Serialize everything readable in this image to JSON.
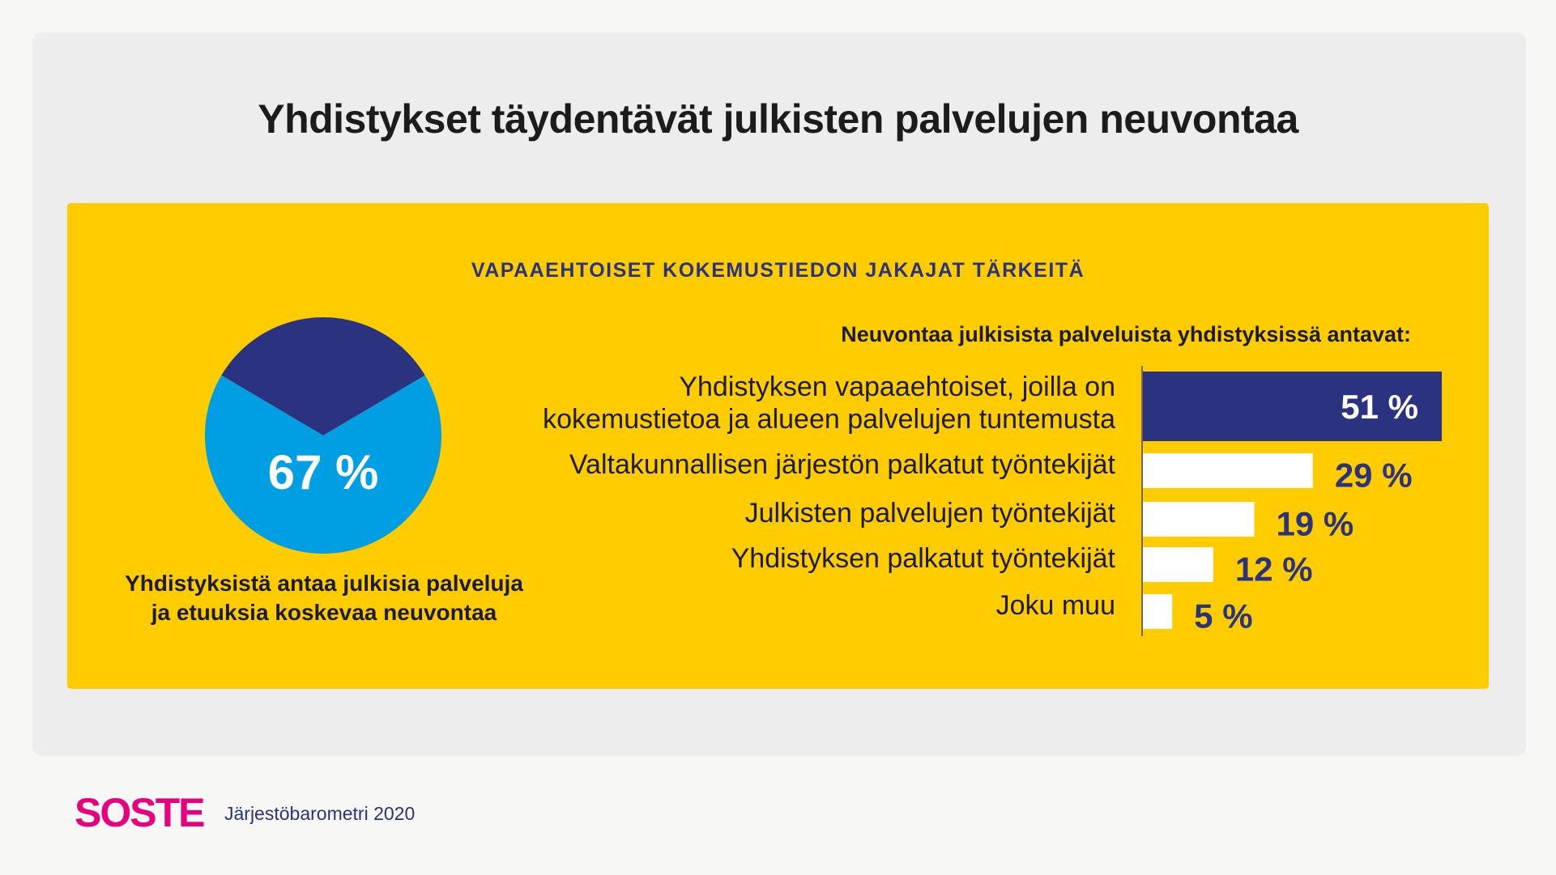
{
  "header": {
    "title": "Yhdistykset täydentävät julkisten palvelujen neuvontaa"
  },
  "panel": {
    "title": "VAPAAEHTOISET KOKEMUSTIEDON JAKAJAT TÄRKEITÄ"
  },
  "pie": {
    "caption_line1": "Yhdistyksistä antaa julkisia palveluja",
    "caption_line2": "ja etuuksia koskevaa neuvontaa"
  },
  "bars": {
    "title": "Neuvontaa  julkisista palveluista yhdistyksissä antavat:"
  },
  "footer": {
    "logo": "SOSTE",
    "source": "Järjestöbarometri 2020"
  },
  "colors": {
    "yellow": "#ffcc00",
    "navy": "#2b3280",
    "lightblue": "#009fe3",
    "pink": "#e6007e",
    "white": "#ffffff"
  },
  "chart_data": [
    {
      "type": "pie",
      "categories": [
        "",
        ""
      ],
      "values": [
        67,
        33
      ],
      "colors": [
        "#009fe3",
        "#2b3280"
      ],
      "data_label": "67 %"
    },
    {
      "type": "bar",
      "orientation": "horizontal",
      "categories": [
        "Yhdistyksen vapaaehtoiset, joilla on kokemustietoa ja alueen palvelujen tuntemusta",
        "Valtakunnallisen järjestön palkatut työntekijät",
        "Julkisten palvelujen työntekijät",
        "Yhdistyksen palkatut työntekijät",
        "Joku muu"
      ],
      "label_lines": [
        [
          "Yhdistyksen vapaaehtoiset, joilla on",
          "kokemustietoa ja alueen palvelujen tuntemusta"
        ],
        [
          "Valtakunnallisen järjestön palkatut työntekijät"
        ],
        [
          "Julkisten palvelujen työntekijät"
        ],
        [
          "Yhdistyksen palkatut työntekijät"
        ],
        [
          "Joku muu"
        ]
      ],
      "values": [
        51,
        29,
        19,
        12,
        5
      ],
      "value_labels": [
        "51 %",
        "29 %",
        "19 %",
        "12 %",
        "5 %"
      ],
      "highlight_color": "#2b3280",
      "bar_color": "#ffffff",
      "xlim": [
        0,
        51
      ]
    }
  ]
}
